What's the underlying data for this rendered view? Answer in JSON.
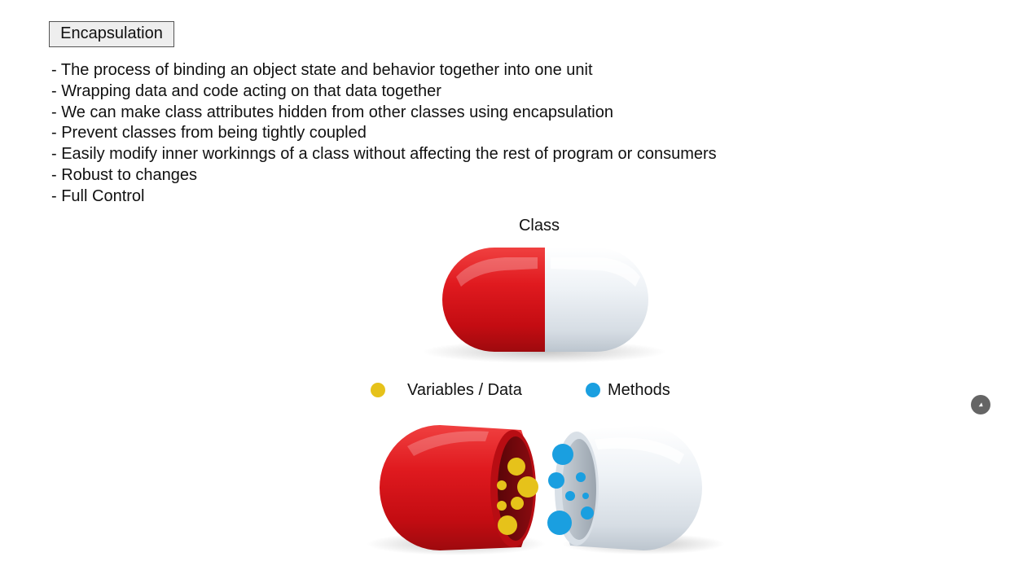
{
  "slide": {
    "title": "Encapsulation",
    "bullets": [
      "The process of binding an object state and behavior together into one unit",
      "Wrapping data and code acting on that data together",
      "We can make class attributes hidden from other classes using encapsulation",
      "Prevent classes from being tightly coupled",
      "Easily modify inner workinngs of a class without affecting the rest of program or consumers",
      "Robust to changes",
      "Full Control"
    ],
    "diagram_label": "Class",
    "legend": {
      "data_label": "Variables / Data",
      "methods_label": "Methods"
    }
  },
  "colors": {
    "data": "#e6c21a",
    "methods": "#1a9fe0",
    "capsule_red": "#d4141c",
    "capsule_white": "#e8edf2"
  },
  "icons": {
    "cursor": "pointer-cursor-icon"
  }
}
